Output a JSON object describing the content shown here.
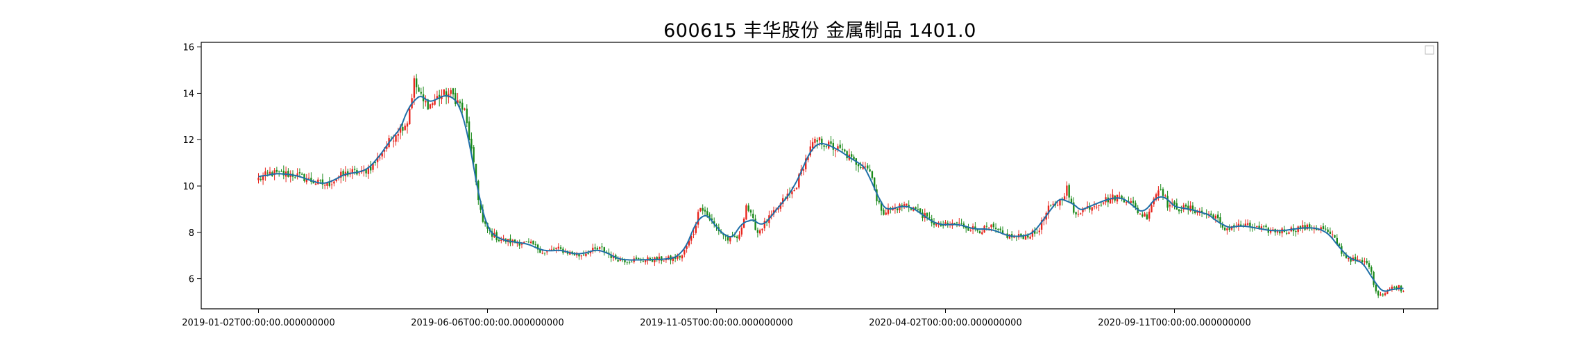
{
  "chart_data": {
    "type": "candlestick",
    "title": "600615 丰华股份 金属制品 1401.0",
    "xlabel": "",
    "ylabel": "",
    "ylim": [
      4.7,
      16.2
    ],
    "yticks": [
      6,
      8,
      10,
      12,
      14,
      16
    ],
    "xtick_labels": [
      "2019-01-02T00:00:00.000000000",
      "2019-06-06T00:00:00.000000000",
      "2019-11-05T00:00:00.000000000",
      "2020-04-02T00:00:00.000000000",
      "2020-09-11T00:00:00.000000000",
      ""
    ],
    "xtick_index": [
      0,
      100,
      200,
      300,
      400,
      500
    ],
    "x_range": [
      -25,
      515
    ],
    "up_color": "#e8251d",
    "down_color": "#1a8a1a",
    "ma_color": "#1f6fa8",
    "grid": false,
    "legend": "top-right, empty",
    "close_keypoints": [
      [
        0,
        10.3
      ],
      [
        5,
        10.55
      ],
      [
        15,
        10.5
      ],
      [
        20,
        10.35
      ],
      [
        25,
        10.15
      ],
      [
        30,
        10.05
      ],
      [
        35,
        10.4
      ],
      [
        40,
        10.6
      ],
      [
        45,
        10.55
      ],
      [
        50,
        10.9
      ],
      [
        55,
        11.6
      ],
      [
        60,
        12.3
      ],
      [
        65,
        12.8
      ],
      [
        68,
        14.5
      ],
      [
        72,
        13.6
      ],
      [
        75,
        13.5
      ],
      [
        78,
        13.8
      ],
      [
        82,
        14.0
      ],
      [
        85,
        13.9
      ],
      [
        88,
        13.5
      ],
      [
        90,
        13.2
      ],
      [
        93,
        11.5
      ],
      [
        96,
        9.5
      ],
      [
        98,
        8.4
      ],
      [
        101,
        8.0
      ],
      [
        105,
        7.7
      ],
      [
        110,
        7.6
      ],
      [
        115,
        7.55
      ],
      [
        120,
        7.45
      ],
      [
        125,
        7.1
      ],
      [
        130,
        7.3
      ],
      [
        135,
        7.15
      ],
      [
        140,
        7.0
      ],
      [
        145,
        7.2
      ],
      [
        150,
        7.3
      ],
      [
        155,
        6.9
      ],
      [
        160,
        6.8
      ],
      [
        170,
        6.82
      ],
      [
        180,
        6.85
      ],
      [
        185,
        7.0
      ],
      [
        190,
        8.0
      ],
      [
        193,
        9.2
      ],
      [
        197,
        8.6
      ],
      [
        200,
        8.2
      ],
      [
        205,
        7.7
      ],
      [
        210,
        7.8
      ],
      [
        213,
        9.2
      ],
      [
        218,
        8.0
      ],
      [
        222,
        8.5
      ],
      [
        226,
        8.9
      ],
      [
        230,
        9.5
      ],
      [
        234,
        9.8
      ],
      [
        238,
        10.9
      ],
      [
        242,
        11.8
      ],
      [
        245,
        11.95
      ],
      [
        250,
        11.7
      ],
      [
        255,
        11.5
      ],
      [
        260,
        11.05
      ],
      [
        265,
        10.9
      ],
      [
        268,
        10.5
      ],
      [
        270,
        9.3
      ],
      [
        273,
        8.9
      ],
      [
        278,
        9.05
      ],
      [
        283,
        9.2
      ],
      [
        287,
        9.0
      ],
      [
        292,
        8.6
      ],
      [
        297,
        8.3
      ],
      [
        300,
        8.3
      ],
      [
        305,
        8.4
      ],
      [
        310,
        8.2
      ],
      [
        315,
        8.1
      ],
      [
        320,
        8.2
      ],
      [
        325,
        7.9
      ],
      [
        330,
        7.8
      ],
      [
        335,
        7.85
      ],
      [
        340,
        8.0
      ],
      [
        345,
        9.0
      ],
      [
        350,
        9.35
      ],
      [
        353,
        9.9
      ],
      [
        356,
        8.8
      ],
      [
        360,
        9.0
      ],
      [
        365,
        9.2
      ],
      [
        370,
        9.4
      ],
      [
        375,
        9.55
      ],
      [
        380,
        9.4
      ],
      [
        385,
        8.8
      ],
      [
        388,
        8.7
      ],
      [
        391,
        9.5
      ],
      [
        394,
        10.0
      ],
      [
        397,
        9.2
      ],
      [
        402,
        9.05
      ],
      [
        408,
        9.0
      ],
      [
        413,
        8.8
      ],
      [
        418,
        8.7
      ],
      [
        421,
        8.1
      ],
      [
        425,
        8.25
      ],
      [
        430,
        8.3
      ],
      [
        435,
        8.2
      ],
      [
        440,
        8.1
      ],
      [
        445,
        8.05
      ],
      [
        450,
        8.1
      ],
      [
        455,
        8.2
      ],
      [
        460,
        8.2
      ],
      [
        465,
        8.15
      ],
      [
        470,
        7.7
      ],
      [
        474,
        7.0
      ],
      [
        478,
        6.8
      ],
      [
        483,
        6.7
      ],
      [
        485,
        6.6
      ],
      [
        487,
        5.8
      ],
      [
        489,
        5.3
      ],
      [
        492,
        5.4
      ],
      [
        495,
        5.6
      ],
      [
        498,
        5.65
      ],
      [
        500,
        5.45
      ]
    ]
  }
}
